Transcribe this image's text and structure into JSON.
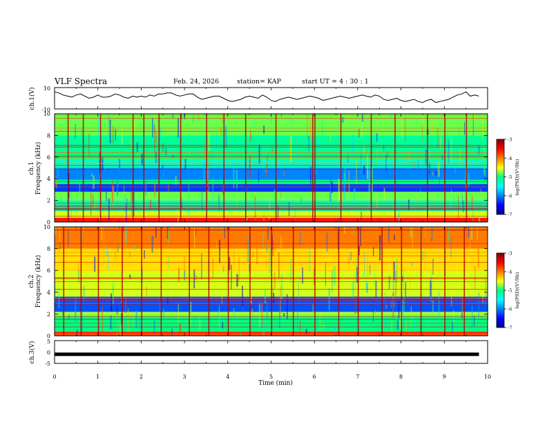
{
  "header": {
    "title": "VLF Spectra",
    "date": "Feb. 24, 2026",
    "station": "station= KAP",
    "start": "start  UT =   4 : 30 : 1"
  },
  "chart_data": [
    {
      "type": "line",
      "name": "ch1-waveform",
      "ylabel": "ch.1(V)",
      "ylim": [
        -10,
        10
      ],
      "ytick_labels": [
        "10",
        "-10"
      ],
      "xlim": [
        0,
        10
      ],
      "x": [
        0,
        0.1,
        0.2,
        0.3,
        0.4,
        0.5,
        0.6,
        0.7,
        0.8,
        0.9,
        1.0,
        1.1,
        1.2,
        1.3,
        1.4,
        1.5,
        1.6,
        1.7,
        1.8,
        1.9,
        2.0,
        2.1,
        2.2,
        2.3,
        2.4,
        2.5,
        2.6,
        2.7,
        2.8,
        2.9,
        3.0,
        3.1,
        3.2,
        3.3,
        3.4,
        3.5,
        3.6,
        3.7,
        3.8,
        3.9,
        4.0,
        4.1,
        4.2,
        4.3,
        4.4,
        4.5,
        4.6,
        4.7,
        4.8,
        4.9,
        5.0,
        5.1,
        5.2,
        5.3,
        5.4,
        5.5,
        5.6,
        5.7,
        5.8,
        5.9,
        6.0,
        6.1,
        6.2,
        6.3,
        6.4,
        6.5,
        6.6,
        6.7,
        6.8,
        6.9,
        7.0,
        7.1,
        7.2,
        7.3,
        7.4,
        7.5,
        7.6,
        7.7,
        7.8,
        7.9,
        8.0,
        8.1,
        8.2,
        8.3,
        8.4,
        8.5,
        8.6,
        8.7,
        8.8,
        8.9,
        9.0,
        9.1,
        9.2,
        9.3,
        9.4,
        9.5,
        9.6,
        9.7,
        9.8
      ],
      "values": [
        6,
        5,
        3,
        2,
        1,
        3,
        4,
        2,
        0,
        1,
        3,
        1,
        1,
        2,
        4,
        3,
        1,
        0,
        2,
        1,
        2,
        1,
        3,
        2,
        4,
        4,
        5,
        5,
        3,
        2,
        3,
        4,
        4,
        1,
        -1,
        0,
        1,
        2,
        2,
        0,
        -2,
        -3,
        -2,
        -1,
        1,
        2,
        1,
        0,
        3,
        1,
        -2,
        -3,
        -1,
        0,
        1,
        0,
        -1,
        0,
        1,
        2,
        1,
        0,
        -2,
        -1,
        0,
        1,
        2,
        1,
        0,
        1,
        2,
        3,
        2,
        1,
        3,
        2,
        -1,
        -2,
        -1,
        0,
        -2,
        -3,
        -2,
        -1,
        -3,
        -4,
        -2,
        -1,
        -4,
        -3,
        -2,
        -1,
        1,
        3,
        4,
        6,
        2,
        3,
        2
      ]
    },
    {
      "type": "heatmap",
      "name": "ch1-spectrogram",
      "ylabel": "ch.1\nFrequency (kHz)",
      "ylim": [
        0,
        10
      ],
      "ytick_labels": [
        "0",
        "2",
        "4",
        "6",
        "8",
        "10"
      ],
      "xlim": [
        0,
        10
      ],
      "colorbar": {
        "label": "log(PSD)(V²/Hz)",
        "range": [
          -7,
          -3
        ],
        "tick_labels": [
          "-3",
          "-4",
          "-5",
          "-6",
          "-7"
        ]
      },
      "freq_bands_khz": [
        {
          "from": 0.0,
          "to": 0.4,
          "level": -3.6
        },
        {
          "from": 0.4,
          "to": 1.0,
          "level": -4.6
        },
        {
          "from": 1.0,
          "to": 2.0,
          "level": -5.2
        },
        {
          "from": 2.0,
          "to": 2.8,
          "level": -4.8
        },
        {
          "from": 2.8,
          "to": 3.5,
          "level": -6.3
        },
        {
          "from": 3.5,
          "to": 3.9,
          "level": -5.0
        },
        {
          "from": 3.9,
          "to": 5.0,
          "level": -6.0
        },
        {
          "from": 5.0,
          "to": 5.8,
          "level": -5.3
        },
        {
          "from": 5.8,
          "to": 6.4,
          "level": -5.0
        },
        {
          "from": 6.4,
          "to": 8.0,
          "level": -5.1
        },
        {
          "from": 8.0,
          "to": 10.0,
          "level": -4.8
        }
      ],
      "impulse_times_min": [
        0.3,
        0.65,
        1.05,
        1.8,
        2.05,
        2.4,
        2.9,
        3.5,
        3.9,
        4.4,
        5.1,
        5.95,
        6.0,
        6.6,
        7.3,
        7.85,
        8.6,
        9.0,
        9.5
      ]
    },
    {
      "type": "heatmap",
      "name": "ch2-spectrogram",
      "ylabel": "ch.2\nFrequency (kHz)",
      "ylim": [
        0,
        10
      ],
      "ytick_labels": [
        "0",
        "2",
        "4",
        "6",
        "8",
        "10"
      ],
      "xlim": [
        0,
        10
      ],
      "colorbar": {
        "label": "log(PSD)(V²/Hz)",
        "range": [
          -7,
          -3
        ],
        "tick_labels": [
          "-3",
          "-4",
          "-5",
          "-6",
          "-7"
        ]
      },
      "freq_bands_khz": [
        {
          "from": 0.0,
          "to": 0.4,
          "level": -3.8
        },
        {
          "from": 0.4,
          "to": 1.8,
          "level": -5.0
        },
        {
          "from": 1.8,
          "to": 2.2,
          "level": -4.7
        },
        {
          "from": 2.2,
          "to": 3.6,
          "level": -6.2
        },
        {
          "from": 3.6,
          "to": 6.0,
          "level": -4.6
        },
        {
          "from": 6.0,
          "to": 8.0,
          "level": -4.4
        },
        {
          "from": 8.0,
          "to": 10.0,
          "level": -4.0
        }
      ],
      "impulse_times_min": [
        0.2,
        0.6,
        1.0,
        1.55,
        2.0,
        2.45,
        3.1,
        3.55,
        4.0,
        4.5,
        5.0,
        5.5,
        6.0,
        6.55,
        7.0,
        7.55,
        8.0,
        8.45,
        9.0,
        9.45
      ]
    },
    {
      "type": "line",
      "name": "ch3-waveform",
      "ylabel": "ch.3(V)",
      "ylim": [
        -5,
        5
      ],
      "ytick_labels": [
        "5",
        "0",
        "-5"
      ],
      "xlim": [
        0,
        10
      ],
      "x": [
        0,
        9.8
      ],
      "values": [
        -1,
        -1
      ],
      "xlabel": "Time (min)",
      "xtick_labels": [
        "0",
        "1",
        "2",
        "3",
        "4",
        "5",
        "6",
        "7",
        "8",
        "9",
        "10"
      ]
    }
  ]
}
